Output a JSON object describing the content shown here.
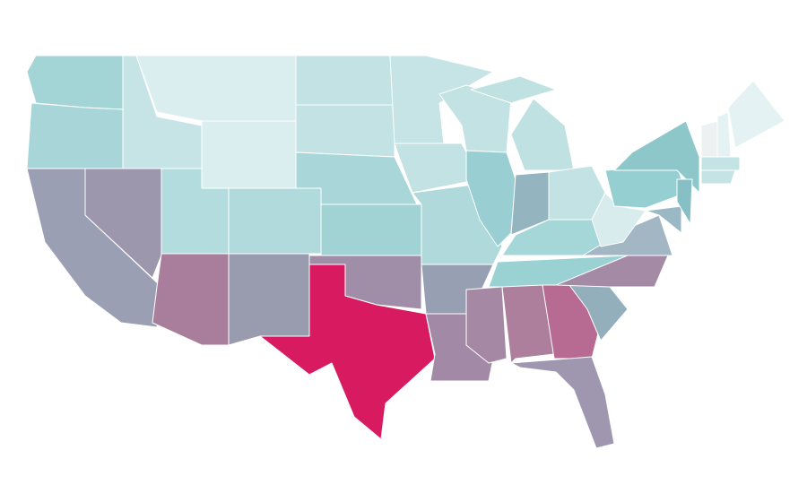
{
  "map": {
    "type": "choropleth",
    "regions": [
      {
        "color": "#a3d4d6"
      },
      {
        "color": "#a8d6d8"
      },
      {
        "color": "#9a9fb3"
      },
      {
        "color": "#9c97ad"
      },
      {
        "color": "#c6e4e6"
      },
      {
        "color": "#daeef0"
      },
      {
        "color": "#daeef0"
      },
      {
        "color": "#b3dcde"
      },
      {
        "color": "#a97e9c"
      },
      {
        "color": "#b1dadc"
      },
      {
        "color": "#999bae"
      },
      {
        "color": "#c2e2e3"
      },
      {
        "color": "#c2e2e3"
      },
      {
        "color": "#a9d6d8"
      },
      {
        "color": "#a1d2d4"
      },
      {
        "color": "#a08ea8"
      },
      {
        "color": "#d81b60"
      },
      {
        "color": "#c6e4e6"
      },
      {
        "color": "#c2e2e3"
      },
      {
        "color": "#afd9db"
      },
      {
        "color": "#979fb3"
      },
      {
        "color": "#a28aa6"
      },
      {
        "color": "#c2e2e3"
      },
      {
        "color": "#99cfd3"
      },
      {
        "color": "#bfe1e2"
      },
      {
        "color": "#bfe1e2"
      },
      {
        "color": "#94b4bf"
      },
      {
        "color": "#c2e2e3"
      },
      {
        "color": "#a5d6d8"
      },
      {
        "color": "#9ad2d3"
      },
      {
        "color": "#a589a4"
      },
      {
        "color": "#ad7f9d"
      },
      {
        "color": "#b76b92"
      },
      {
        "color": "#9f97b0"
      },
      {
        "color": "#94afbc"
      },
      {
        "color": "#a58aa6"
      },
      {
        "color": "#a3b6c4"
      },
      {
        "color": "#d8eced"
      },
      {
        "color": "#95cfd2"
      },
      {
        "color": "#8ec7ca"
      },
      {
        "color": "#9bb9c4"
      },
      {
        "color": "#87c0c4"
      },
      {
        "color": "#eef1f2"
      },
      {
        "color": "#e4f2f3"
      },
      {
        "color": "#e4f2f3"
      },
      {
        "color": "#c4e3e5"
      },
      {
        "color": "#c4e3e5"
      }
    ]
  }
}
